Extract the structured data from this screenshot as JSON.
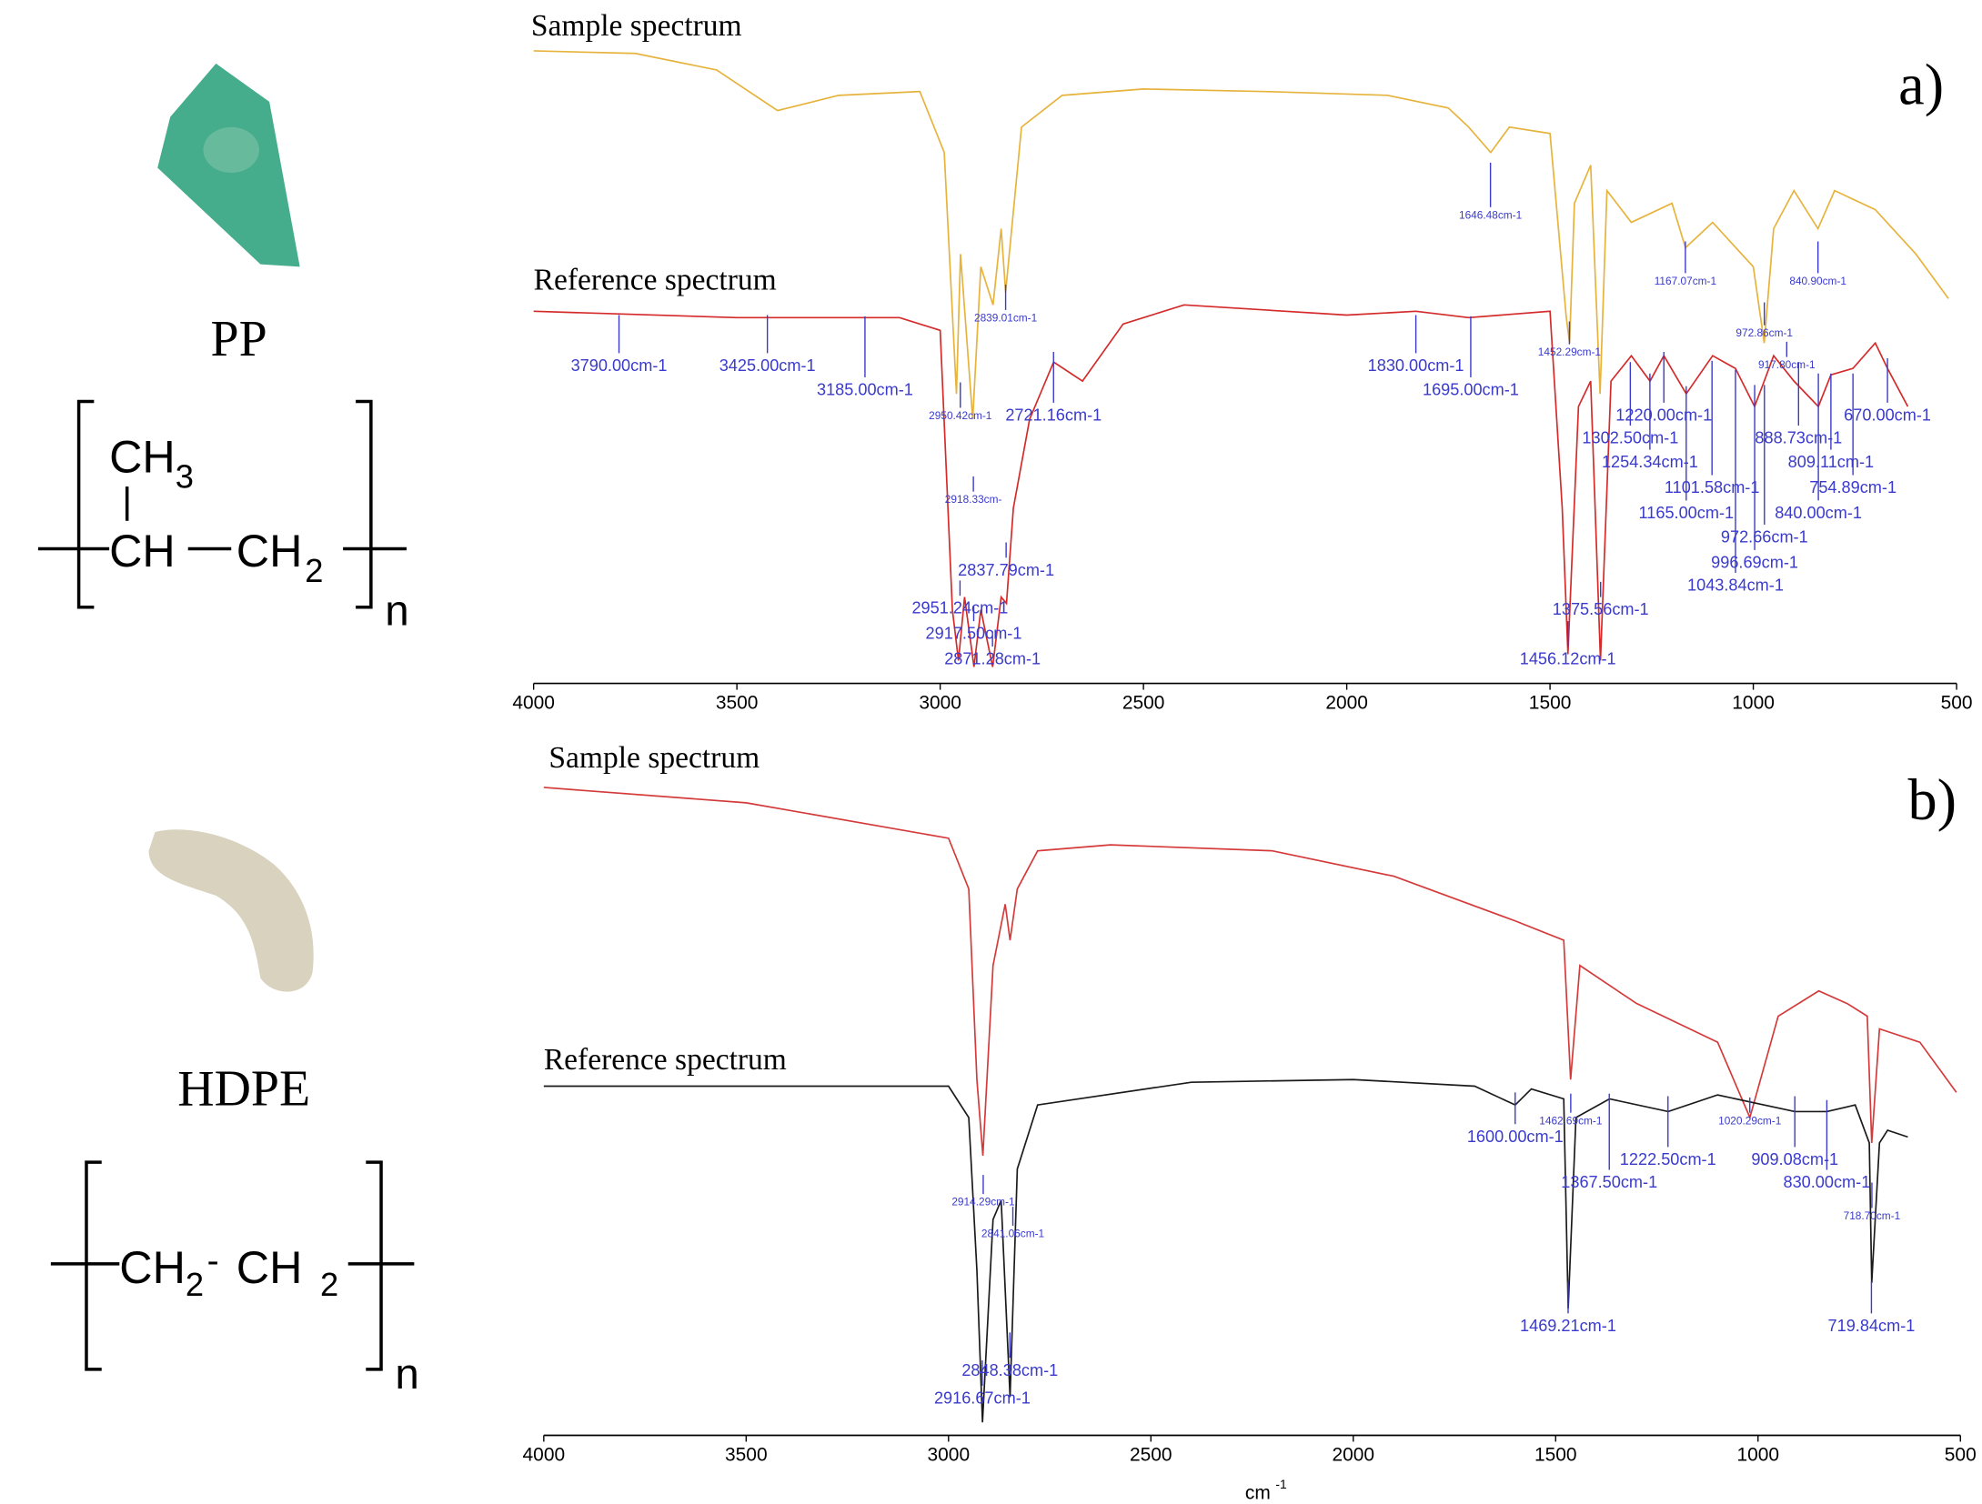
{
  "specimens": [
    {
      "name": "PP",
      "formula": {
        "sub_group": "CH",
        "sub_group_index": "3",
        "unit_1": "CH",
        "unit_2": "CH",
        "unit_2_index": "2",
        "repeat": "n"
      }
    },
    {
      "name": "HDPE",
      "formula": {
        "unit_1": "CH",
        "unit_1_index": "2",
        "bond": "-",
        "unit_2": "CH",
        "unit_2_index": "2",
        "repeat": "n"
      }
    }
  ],
  "chart_data": [
    {
      "type": "line",
      "panel_label": "a)",
      "xlim": [
        4000,
        500
      ],
      "ylim": [
        0,
        100
      ],
      "xticks": [
        4000,
        3500,
        3000,
        2500,
        2000,
        1500,
        1000,
        500
      ],
      "series": [
        {
          "name": "Sample spectrum",
          "color": "#e6b33c",
          "x": [
            4000,
            3750,
            3550,
            3400,
            3250,
            3050,
            2990,
            2960,
            2950,
            2920,
            2900,
            2870,
            2850,
            2839,
            2800,
            2700,
            2500,
            2200,
            1900,
            1750,
            1700,
            1646,
            1600,
            1500,
            1460,
            1452,
            1440,
            1400,
            1377,
            1360,
            1300,
            1200,
            1167,
            1100,
            1000,
            973,
            950,
            900,
            841,
            800,
            700,
            600,
            520
          ],
          "values": [
            98,
            97.6,
            95,
            88.6,
            91,
            91.6,
            82,
            44,
            66,
            40,
            64,
            58,
            70,
            60,
            86,
            91,
            92,
            91.6,
            91,
            89,
            86,
            82,
            86,
            85,
            56,
            52,
            74,
            80,
            44,
            76,
            71,
            74,
            67,
            71,
            64,
            52,
            70,
            76,
            70,
            76,
            73,
            66,
            59
          ]
        },
        {
          "name": "Reference spectrum",
          "color": "#d42a2a",
          "x": [
            4000,
            3500,
            3100,
            3000,
            2970,
            2955,
            2940,
            2917,
            2900,
            2871,
            2850,
            2837,
            2820,
            2780,
            2721,
            2650,
            2550,
            2400,
            2000,
            1830,
            1700,
            1500,
            1470,
            1456,
            1430,
            1400,
            1376,
            1350,
            1300,
            1254,
            1220,
            1165,
            1100,
            1044,
            997,
            973,
            950,
            900,
            840,
            809,
            755,
            700,
            670,
            620
          ],
          "values": [
            57,
            56,
            56,
            54,
            10,
            2,
            12,
            1,
            10,
            1,
            12,
            11,
            26,
            40,
            49,
            46,
            55,
            58,
            56.4,
            57,
            56,
            57,
            26,
            3,
            42,
            46,
            2,
            46,
            50,
            46,
            50,
            44,
            50,
            48,
            42,
            46,
            50,
            46,
            42,
            47,
            48,
            52,
            48,
            42
          ]
        }
      ],
      "annotations": [
        {
          "value": 1646.48,
          "label": "1646.48cm-1"
        },
        {
          "value": 2839.01,
          "label": "2839.01cm-1"
        },
        {
          "value": 1452.29,
          "label": "1452.29cm-1"
        },
        {
          "value": 1167.07,
          "label": "1167.07cm-1"
        },
        {
          "value": 972.86,
          "label": "972.86cm-1"
        },
        {
          "value": 840.9,
          "label": "840.90cm-1"
        },
        {
          "value": 917.8,
          "label": "917.80cm-1"
        },
        {
          "value": 2950.42,
          "label": "2950.42cm-1"
        },
        {
          "value": 2918.33,
          "label": "2918.33cm-"
        },
        {
          "value": 3790,
          "label": "3790.00cm-1"
        },
        {
          "value": 3425,
          "label": "3425.00cm-1"
        },
        {
          "value": 3185,
          "label": "3185.00cm-1"
        },
        {
          "value": 2721.16,
          "label": "2721.16cm-1"
        },
        {
          "value": 1830,
          "label": "1830.00cm-1"
        },
        {
          "value": 1695,
          "label": "1695.00cm-1"
        },
        {
          "value": 2837.79,
          "label": "2837.79cm-1"
        },
        {
          "value": 2951.24,
          "label": "2951.24cm-1"
        },
        {
          "value": 2917.5,
          "label": "2917.50cm-1"
        },
        {
          "value": 2871.28,
          "label": "2871.28cm-1"
        },
        {
          "value": 1375.56,
          "label": "1375.56cm-1"
        },
        {
          "value": 1456.12,
          "label": "1456.12cm-1"
        },
        {
          "value": 1220,
          "label": "1220.00cm-1"
        },
        {
          "value": 1302.5,
          "label": "1302.50cm-1"
        },
        {
          "value": 1254.34,
          "label": "1254.34cm-1"
        },
        {
          "value": 1101.58,
          "label": "1101.58cm-1"
        },
        {
          "value": 1165,
          "label": "1165.00cm-1"
        },
        {
          "value": 972.66,
          "label": "972.66cm-1"
        },
        {
          "value": 996.69,
          "label": "996.69cm-1"
        },
        {
          "value": 1043.84,
          "label": "1043.84cm-1"
        },
        {
          "value": 888.73,
          "label": "888.73cm-1"
        },
        {
          "value": 809.11,
          "label": "809.11cm-1"
        },
        {
          "value": 754.89,
          "label": "754.89cm-1"
        },
        {
          "value": 840,
          "label": "840.00cm-1"
        },
        {
          "value": 670,
          "label": "670.00cm-1"
        }
      ]
    },
    {
      "type": "line",
      "panel_label": "b)",
      "xlim": [
        4000,
        500
      ],
      "ylim": [
        0,
        100
      ],
      "xticks": [
        4000,
        3500,
        3000,
        2500,
        2000,
        1500,
        1000,
        500
      ],
      "xlabel": "cm",
      "xlabel_superscript": "-1",
      "series": [
        {
          "name": "Sample spectrum",
          "color": "#d43a3a",
          "x": [
            4000,
            3500,
            3000,
            2950,
            2930,
            2915,
            2890,
            2860,
            2848,
            2830,
            2780,
            2600,
            2200,
            1900,
            1600,
            1480,
            1463,
            1440,
            1300,
            1100,
            1020,
            950,
            850,
            780,
            730,
            719,
            700,
            600,
            510
          ],
          "values": [
            96.2,
            93.9,
            88.6,
            81,
            52.4,
            41,
            69.5,
            78.7,
            73.3,
            81,
            86.7,
            87.6,
            86.7,
            82.9,
            76.2,
            73.3,
            52.4,
            69.5,
            63.8,
            58,
            46.7,
            61.9,
            65.7,
            63.8,
            61.9,
            42.9,
            60,
            58,
            50.5
          ]
        },
        {
          "name": "Reference spectrum",
          "color": "#1a1a1a",
          "x": [
            4000,
            3000,
            2950,
            2930,
            2916,
            2890,
            2870,
            2848,
            2830,
            2780,
            2400,
            2000,
            1700,
            1600,
            1560,
            1480,
            1469,
            1450,
            1367,
            1222,
            1100,
            909,
            830,
            760,
            725,
            719,
            700,
            680,
            630
          ],
          "values": [
            51.4,
            51.4,
            46.7,
            23.8,
            1,
            31.4,
            34.3,
            4.8,
            39,
            48.6,
            52,
            52.4,
            51.4,
            48.6,
            51,
            49.5,
            18.1,
            46.7,
            49.5,
            47.6,
            50.1,
            47.6,
            47.6,
            48.6,
            42.9,
            21.9,
            42.9,
            44.8,
            43.8
          ]
        }
      ],
      "annotations": [
        {
          "value": 1600,
          "label": "1600.00cm-1"
        },
        {
          "value": 1462.69,
          "label": "1462.69cm-1"
        },
        {
          "value": 1020.29,
          "label": "1020.29cm-1"
        },
        {
          "value": 1222.5,
          "label": "1222.50cm-1"
        },
        {
          "value": 1367.5,
          "label": "1367.50cm-1"
        },
        {
          "value": 909.08,
          "label": "909.08cm-1"
        },
        {
          "value": 830,
          "label": "830.00cm-1"
        },
        {
          "value": 718.7,
          "label": "718.70cm-1"
        },
        {
          "value": 2914.29,
          "label": "2914.29cm-1"
        },
        {
          "value": 2841.06,
          "label": "2841.06cm-1"
        },
        {
          "value": 1469.21,
          "label": "1469.21cm-1"
        },
        {
          "value": 719.84,
          "label": "719.84cm-1"
        },
        {
          "value": 2848.38,
          "label": "2848.38cm-1"
        },
        {
          "value": 2916.67,
          "label": "2916.67cm-1"
        }
      ]
    }
  ]
}
